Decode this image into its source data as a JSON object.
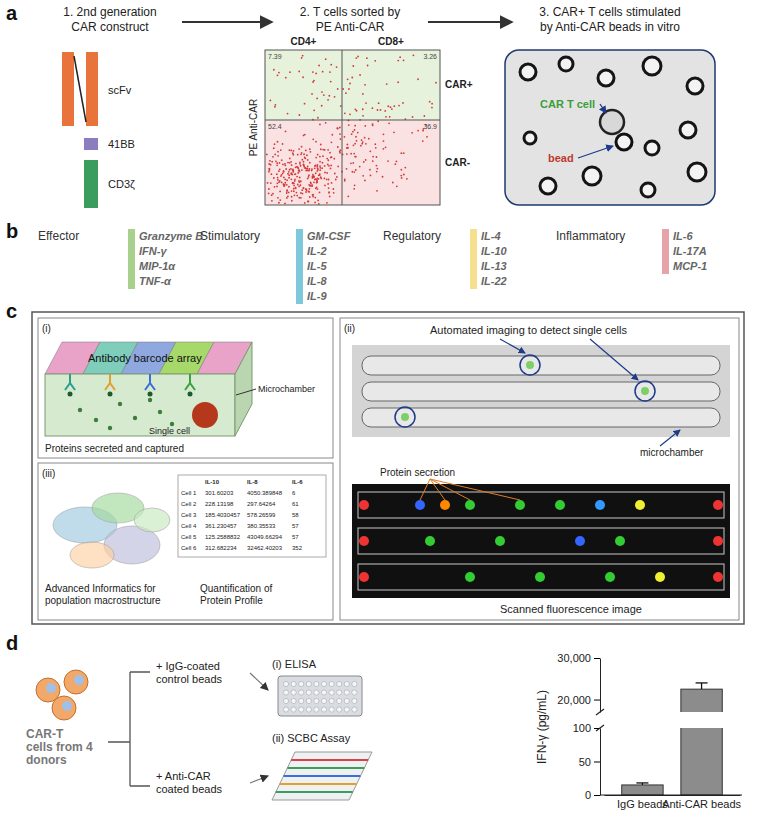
{
  "figure": {
    "a": {
      "label": "a",
      "step1": {
        "title": [
          "1. 2nd generation",
          "CAR construct"
        ],
        "parts": [
          "scFv",
          "41BB",
          "CD3ζ"
        ]
      },
      "step2": {
        "title": [
          "2. T cells sorted by",
          "PE Anti-CAR"
        ],
        "columns": [
          "CD4+",
          "CD8+"
        ],
        "rows": [
          "CAR+",
          "CAR-"
        ],
        "y_label": "PE Anti-CAR",
        "quadrant_values": [
          7.39,
          3.26,
          52.4,
          36.9
        ]
      },
      "step3": {
        "title": [
          "3. CAR+ T cells stimulated",
          "by Anti-CAR beads in vitro"
        ],
        "labels": [
          "CAR T cell",
          "bead"
        ]
      }
    },
    "b": {
      "label": "b",
      "groups": [
        {
          "name": "Effector",
          "color": "#a9d18e",
          "items": [
            "Granzyme B",
            "IFN-γ",
            "MIP-1α",
            "TNF-α"
          ]
        },
        {
          "name": "Stimulatory",
          "color": "#7ec8dc",
          "items": [
            "GM-CSF",
            "IL-2",
            "IL-5",
            "IL-8",
            "IL-9"
          ]
        },
        {
          "name": "Regulatory",
          "color": "#f5e08e",
          "items": [
            "IL-4",
            "IL-10",
            "IL-13",
            "IL-22"
          ]
        },
        {
          "name": "Inflammatory",
          "color": "#e6a4aa",
          "items": [
            "IL-6",
            "IL-17A",
            "MCP-1"
          ]
        }
      ]
    },
    "c": {
      "label": "c",
      "i": {
        "tag": "(i)",
        "header": "Antibody barcode array",
        "chamber": "Microchamber",
        "cell": "Single cell",
        "caption": "Proteins secreted and captured"
      },
      "ii": {
        "tag": "(ii)",
        "imaging": "Automated imaging to detect single cells",
        "chamber": "microchamber",
        "secretion": "Protein secretion",
        "caption": "Scanned fluorescence image"
      },
      "iii": {
        "tag": "(iii)",
        "informatics": [
          "Advanced Informatics for",
          "population macrostructure"
        ],
        "quantification": [
          "Quantification of",
          "Protein Profile"
        ],
        "table": {
          "columns": [
            "IL-10",
            "IL-8",
            "IL-6"
          ],
          "rows": [
            {
              "cell": "Cell 1",
              "values": [
                301.60203,
                4050.389848,
                6
              ]
            },
            {
              "cell": "Cell 2",
              "values": [
                228.13198,
                297.64264,
                61
              ]
            },
            {
              "cell": "Cell 3",
              "values": [
                185.4030457,
                578.26599,
                58
              ]
            },
            {
              "cell": "Cell 4",
              "values": [
                361.230457,
                380.35533,
                57
              ]
            },
            {
              "cell": "Cell 5",
              "values": [
                125.2588832,
                43049.66294,
                57
              ]
            },
            {
              "cell": "Cell 6",
              "values": [
                312.682234,
                32462.40203,
                352
              ]
            }
          ]
        }
      }
    },
    "d": {
      "label": "d",
      "source": [
        "CAR-T",
        "cells from 4",
        "donors"
      ],
      "control": [
        "+ IgG-coated",
        "control beads"
      ],
      "stimulated": [
        "+ Anti-CAR",
        "coated beads"
      ],
      "assays": [
        "(i) ELISA",
        "(ii) SCBC Assay"
      ]
    }
  },
  "chart_data": {
    "type": "bar",
    "y_label": "IFN-γ (pg/mL)",
    "categories": [
      "IgG beads",
      "Anti-CAR beads"
    ],
    "values": [
      15,
      22500
    ],
    "errors": [
      3,
      1500
    ],
    "color": "#8c8c8c",
    "ylim": [
      0,
      30000
    ],
    "ybreak": [
      100,
      17000
    ],
    "yticks": [
      0,
      50,
      100,
      {
        "value": 20000,
        "label": "20,000"
      },
      {
        "value": 30000,
        "label": "30,000"
      }
    ]
  }
}
